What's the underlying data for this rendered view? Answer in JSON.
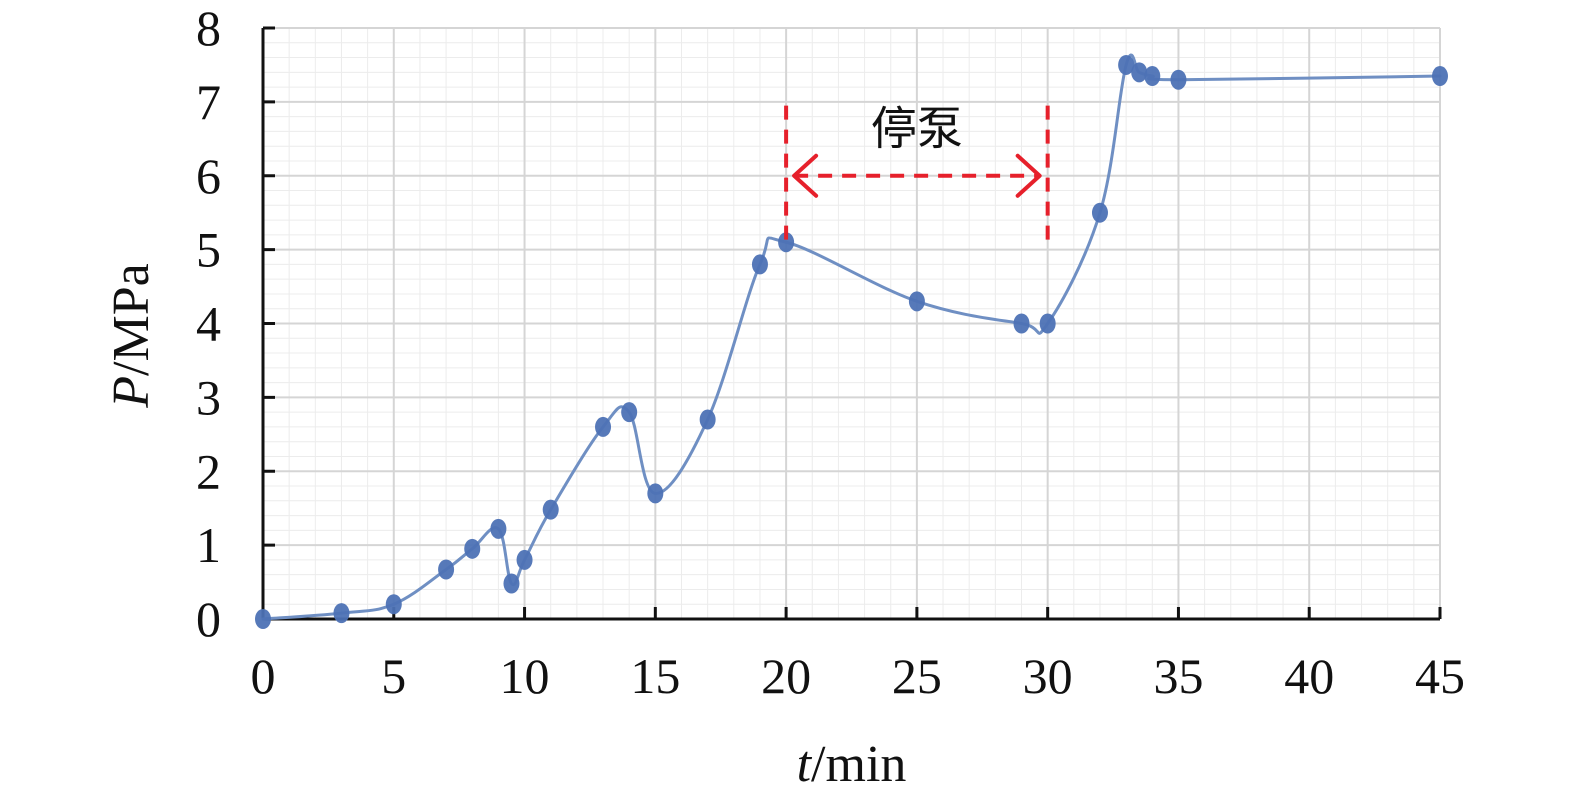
{
  "chart_data": {
    "type": "line",
    "xlabel": {
      "variable": "t",
      "unit": "/min"
    },
    "ylabel": {
      "variable": "P",
      "unit": "/MPa"
    },
    "xlim": [
      0,
      45
    ],
    "ylim": [
      0,
      8
    ],
    "x_ticks": [
      0,
      5,
      10,
      15,
      20,
      25,
      30,
      35,
      40,
      45
    ],
    "y_ticks": [
      0,
      1,
      2,
      3,
      4,
      5,
      6,
      7,
      8
    ],
    "grid": true,
    "series": [
      {
        "x": [
          0,
          3,
          5,
          7,
          8,
          9,
          9.5,
          10,
          11,
          13,
          14,
          15,
          17,
          19,
          20,
          25,
          29,
          30,
          32,
          33,
          33.5,
          34,
          35,
          45
        ],
        "y": [
          0,
          0.08,
          0.2,
          0.67,
          0.95,
          1.22,
          0.48,
          0.8,
          1.48,
          2.6,
          2.8,
          1.7,
          2.7,
          4.8,
          5.1,
          4.3,
          4.0,
          4.0,
          5.5,
          7.5,
          7.4,
          7.35,
          7.3,
          7.35
        ]
      }
    ],
    "annotations": [
      {
        "text": "停泵",
        "x_start": 20,
        "x_end": 30
      }
    ],
    "colors": {
      "line": "#6f8fc3",
      "marker": "#4d72b5",
      "annotation": "#e6202b",
      "major_grid": "#d5d5d5",
      "minor_grid": "#ececec",
      "axis": "#111111"
    }
  }
}
